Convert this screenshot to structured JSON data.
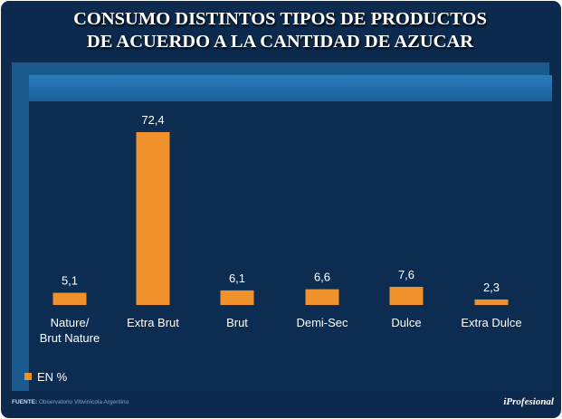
{
  "title_lines": [
    "CONSUMO DISTINTOS TIPOS DE PRODUCTOS",
    "DE ACUERDO A LA CANTIDAD  DE AZUCAR"
  ],
  "chart_data": {
    "type": "bar",
    "categories": [
      [
        "Nature/",
        "Brut Nature"
      ],
      [
        "Extra Brut"
      ],
      [
        "Brut"
      ],
      [
        "Demi-Sec"
      ],
      [
        "Dulce"
      ],
      [
        "Extra Dulce"
      ]
    ],
    "values": [
      5.1,
      72.4,
      6.1,
      6.6,
      7.6,
      2.3
    ],
    "value_labels": [
      "5,1",
      "72,4",
      "6,1",
      "6,6",
      "7,6",
      "2,3"
    ],
    "series_name": "EN %",
    "ylim": [
      0,
      72.4
    ],
    "bar_color": "#f0922b"
  },
  "legend": {
    "label": "EN %"
  },
  "footer": {
    "source_label": "FUENTE:",
    "source_text": "Observatorio Vitivinícola Argentino",
    "brand": "iProfesional"
  },
  "colors": {
    "background": "#0c2a4d",
    "panel": "#1a5a8f",
    "plot": "#0d2c52",
    "accent": "#f0922b"
  }
}
